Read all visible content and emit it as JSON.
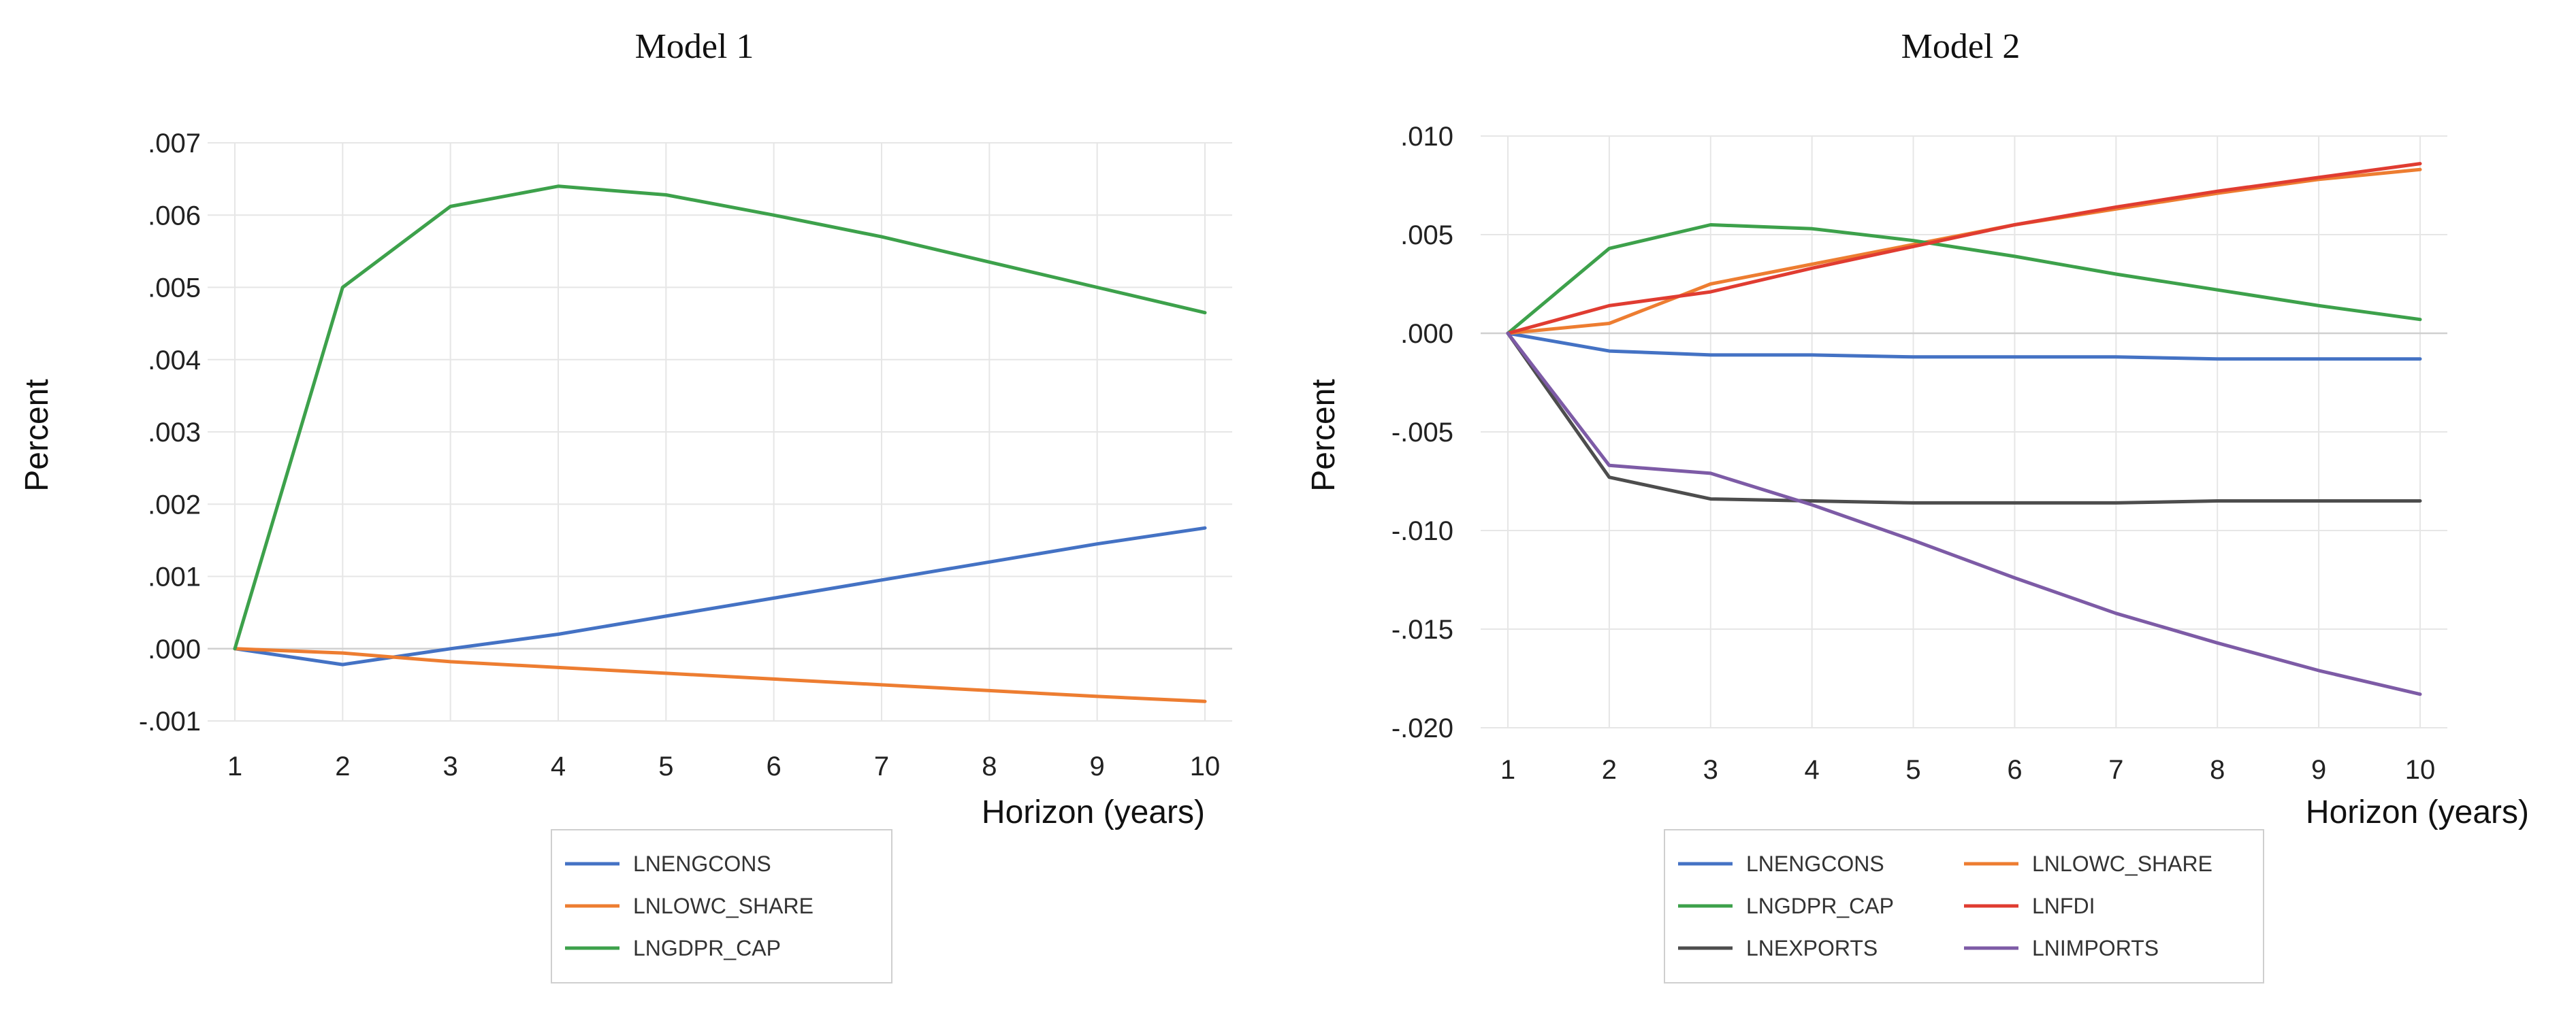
{
  "chart_data": [
    {
      "type": "line",
      "title": "Model 1",
      "xlabel": "Horizon (years)",
      "ylabel": "Percent",
      "x": [
        1,
        2,
        3,
        4,
        5,
        6,
        7,
        8,
        9,
        10
      ],
      "xtick_labels": [
        "1",
        "2",
        "3",
        "4",
        "5",
        "6",
        "7",
        "8",
        "9",
        "10"
      ],
      "ylim": [
        -0.001,
        0.007
      ],
      "yticks": [
        -0.001,
        0.0,
        0.001,
        0.002,
        0.003,
        0.004,
        0.005,
        0.006,
        0.007
      ],
      "ytick_labels": [
        "-.001",
        ".000",
        ".001",
        ".002",
        ".003",
        ".004",
        ".005",
        ".006",
        ".007"
      ],
      "grid": true,
      "legend_position": "bottom",
      "series": [
        {
          "name": "LNENGCONS",
          "color": "#4472C4",
          "values": [
            0.0,
            -0.00022,
            0.0,
            0.0002,
            0.00045,
            0.0007,
            0.00095,
            0.0012,
            0.00145,
            0.00167
          ]
        },
        {
          "name": "LNLOWC_SHARE",
          "color": "#ED7D31",
          "values": [
            0.0,
            -6e-05,
            -0.00018,
            -0.00026,
            -0.00034,
            -0.00042,
            -0.0005,
            -0.00058,
            -0.00066,
            -0.00073
          ]
        },
        {
          "name": "LNGDPR_CAP",
          "color": "#3DA14B",
          "values": [
            0.0,
            0.005,
            0.00612,
            0.0064,
            0.00628,
            0.006,
            0.0057,
            0.00535,
            0.005,
            0.00465
          ]
        }
      ]
    },
    {
      "type": "line",
      "title": "Model 2",
      "xlabel": "Horizon (years)",
      "ylabel": "Percent",
      "x": [
        1,
        2,
        3,
        4,
        5,
        6,
        7,
        8,
        9,
        10
      ],
      "xtick_labels": [
        "1",
        "2",
        "3",
        "4",
        "5",
        "6",
        "7",
        "8",
        "9",
        "10"
      ],
      "ylim": [
        -0.02,
        0.01
      ],
      "yticks": [
        -0.02,
        -0.015,
        -0.01,
        -0.005,
        0.0,
        0.005,
        0.01
      ],
      "ytick_labels": [
        "-.020",
        "-.015",
        "-.010",
        "-.005",
        ".000",
        ".005",
        ".010"
      ],
      "grid": true,
      "legend_position": "bottom",
      "series": [
        {
          "name": "LNENGCONS",
          "color": "#4472C4",
          "values": [
            0.0,
            -0.0009,
            -0.0011,
            -0.0011,
            -0.0012,
            -0.0012,
            -0.0012,
            -0.0013,
            -0.0013,
            -0.0013
          ]
        },
        {
          "name": "LNLOWC_SHARE",
          "color": "#ED7D31",
          "values": [
            0.0,
            0.0005,
            0.0025,
            0.0035,
            0.0045,
            0.0055,
            0.0063,
            0.0071,
            0.0078,
            0.0083
          ]
        },
        {
          "name": "LNGDPR_CAP",
          "color": "#3DA14B",
          "values": [
            0.0,
            0.0043,
            0.0055,
            0.0053,
            0.0047,
            0.0039,
            0.003,
            0.0022,
            0.0014,
            0.0007
          ]
        },
        {
          "name": "LNFDI",
          "color": "#E03C31",
          "values": [
            0.0,
            0.0014,
            0.0021,
            0.0033,
            0.0044,
            0.0055,
            0.0064,
            0.0072,
            0.0079,
            0.0086
          ]
        },
        {
          "name": "LNEXPORTS",
          "color": "#4D4D4D",
          "values": [
            0.0,
            -0.0073,
            -0.0084,
            -0.0085,
            -0.0086,
            -0.0086,
            -0.0086,
            -0.0085,
            -0.0085,
            -0.0085
          ]
        },
        {
          "name": "LNIMPORTS",
          "color": "#7D5BA6",
          "values": [
            0.0,
            -0.0067,
            -0.0071,
            -0.0087,
            -0.0105,
            -0.0124,
            -0.0142,
            -0.0157,
            -0.0171,
            -0.0183
          ]
        }
      ]
    }
  ]
}
